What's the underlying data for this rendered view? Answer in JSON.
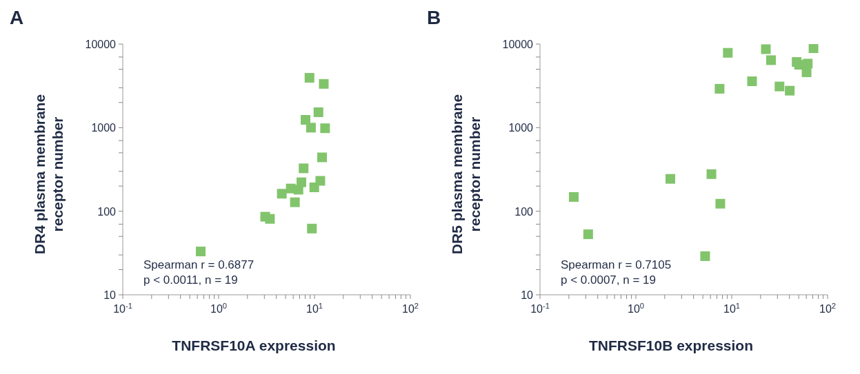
{
  "chart_data": [
    {
      "type": "scatter",
      "title": "A",
      "xlabel": "TNFRSF10A expression",
      "ylabel": "DR4 plasma membrane receptor number",
      "log": "xy",
      "marker": "square",
      "grid": false,
      "legend": false,
      "xlim": [
        0.1,
        100
      ],
      "ylim": [
        10,
        10000
      ],
      "xticks": [
        {
          "value": 0.1,
          "label": "10$^{-1}$"
        },
        {
          "value": 0.2,
          "label": null
        },
        {
          "value": 0.3,
          "label": null
        },
        {
          "value": 0.4,
          "label": null
        },
        {
          "value": 0.5,
          "label": null
        },
        {
          "value": 0.6,
          "label": null
        },
        {
          "value": 0.7,
          "label": null
        },
        {
          "value": 0.8,
          "label": null
        },
        {
          "value": 0.9,
          "label": null
        },
        {
          "value": 1,
          "label": "10$^{0}$"
        },
        {
          "value": 2,
          "label": null
        },
        {
          "value": 3,
          "label": null
        },
        {
          "value": 4,
          "label": null
        },
        {
          "value": 5,
          "label": null
        },
        {
          "value": 6,
          "label": null
        },
        {
          "value": 7,
          "label": null
        },
        {
          "value": 8,
          "label": null
        },
        {
          "value": 9,
          "label": null
        },
        {
          "value": 10,
          "label": "10$^{1}$"
        },
        {
          "value": 20,
          "label": null
        },
        {
          "value": 30,
          "label": null
        },
        {
          "value": 40,
          "label": null
        },
        {
          "value": 50,
          "label": null
        },
        {
          "value": 60,
          "label": null
        },
        {
          "value": 70,
          "label": null
        },
        {
          "value": 80,
          "label": null
        },
        {
          "value": 90,
          "label": null
        },
        {
          "value": 100,
          "label": "10$^{2}$"
        }
      ],
      "yticks": [
        10,
        {
          "value": 20,
          "label": null
        },
        {
          "value": 30,
          "label": null
        },
        {
          "value": 50,
          "label": null
        },
        {
          "value": 70,
          "label": null
        },
        100,
        {
          "value": 200,
          "label": null
        },
        {
          "value": 300,
          "label": null
        },
        {
          "value": 500,
          "label": null
        },
        {
          "value": 700,
          "label": null
        },
        1000,
        {
          "value": 2000,
          "label": null
        },
        {
          "value": 3000,
          "label": null
        },
        {
          "value": 5000,
          "label": null
        },
        {
          "value": 7000,
          "label": null
        },
        10000
      ],
      "series": [
        {
          "color": "#82c46c",
          "x": [
            0.65,
            3.06,
            3.43,
            4.56,
            5.66,
            6.25,
            6.8,
            7.3,
            7.7,
            8.06,
            8.87,
            9.19,
            9.4,
            9.95,
            11.0,
            11.5,
            12.0,
            12.5,
            12.9
          ],
          "values": [
            33,
            86,
            81,
            162,
            187,
            128,
            181,
            222,
            326,
            1240,
            3950,
            1000,
            62,
            193,
            1530,
            231,
            441,
            3340,
            984
          ]
        }
      ],
      "annotations": [
        "Spearman r = 0.6877",
        "p < 0.0011, n = 19"
      ]
    },
    {
      "type": "scatter",
      "title": "B",
      "xlabel": "TNFRSF10B expression",
      "ylabel": "DR5 plasma membrane receptor number",
      "log": "xy",
      "marker": "square",
      "grid": false,
      "legend": false,
      "xlim": [
        0.1,
        100
      ],
      "ylim": [
        10,
        10000
      ],
      "xticks": [
        {
          "value": 0.1,
          "label": "10$^{-1}$"
        },
        {
          "value": 0.2,
          "label": null
        },
        {
          "value": 0.3,
          "label": null
        },
        {
          "value": 0.4,
          "label": null
        },
        {
          "value": 0.5,
          "label": null
        },
        {
          "value": 0.6,
          "label": null
        },
        {
          "value": 0.7,
          "label": null
        },
        {
          "value": 0.8,
          "label": null
        },
        {
          "value": 0.9,
          "label": null
        },
        {
          "value": 1,
          "label": "10$^{0}$"
        },
        {
          "value": 2,
          "label": null
        },
        {
          "value": 3,
          "label": null
        },
        {
          "value": 4,
          "label": null
        },
        {
          "value": 5,
          "label": null
        },
        {
          "value": 6,
          "label": null
        },
        {
          "value": 7,
          "label": null
        },
        {
          "value": 8,
          "label": null
        },
        {
          "value": 9,
          "label": null
        },
        {
          "value": 10,
          "label": "10$^{1}$"
        },
        {
          "value": 20,
          "label": null
        },
        {
          "value": 30,
          "label": null
        },
        {
          "value": 40,
          "label": null
        },
        {
          "value": 50,
          "label": null
        },
        {
          "value": 60,
          "label": null
        },
        {
          "value": 70,
          "label": null
        },
        {
          "value": 80,
          "label": null
        },
        {
          "value": 90,
          "label": null
        },
        {
          "value": 100,
          "label": "10$^{2}$"
        }
      ],
      "yticks": [
        10,
        {
          "value": 20,
          "label": null
        },
        {
          "value": 30,
          "label": null
        },
        {
          "value": 50,
          "label": null
        },
        {
          "value": 70,
          "label": null
        },
        100,
        {
          "value": 200,
          "label": null
        },
        {
          "value": 300,
          "label": null
        },
        {
          "value": 500,
          "label": null
        },
        {
          "value": 700,
          "label": null
        },
        1000,
        {
          "value": 2000,
          "label": null
        },
        {
          "value": 3000,
          "label": null
        },
        {
          "value": 5000,
          "label": null
        },
        {
          "value": 7000,
          "label": null
        },
        10000
      ],
      "series": [
        {
          "color": "#82c46c",
          "x": [
            0.225,
            0.318,
            2.29,
            5.28,
            6.14,
            7.47,
            7.6,
            9.1,
            16.3,
            22.7,
            25.7,
            31.5,
            40.3,
            47.6,
            50.5,
            60.4,
            62.1,
            71.3
          ],
          "values": [
            148,
            53,
            244,
            29,
            278,
            2920,
            123,
            7860,
            3590,
            8690,
            6420,
            3110,
            2770,
            6110,
            5660,
            4600,
            5840,
            8930
          ]
        }
      ],
      "annotations": [
        "Spearman r = 0.7105",
        "p < 0.0007, n = 19"
      ]
    }
  ]
}
